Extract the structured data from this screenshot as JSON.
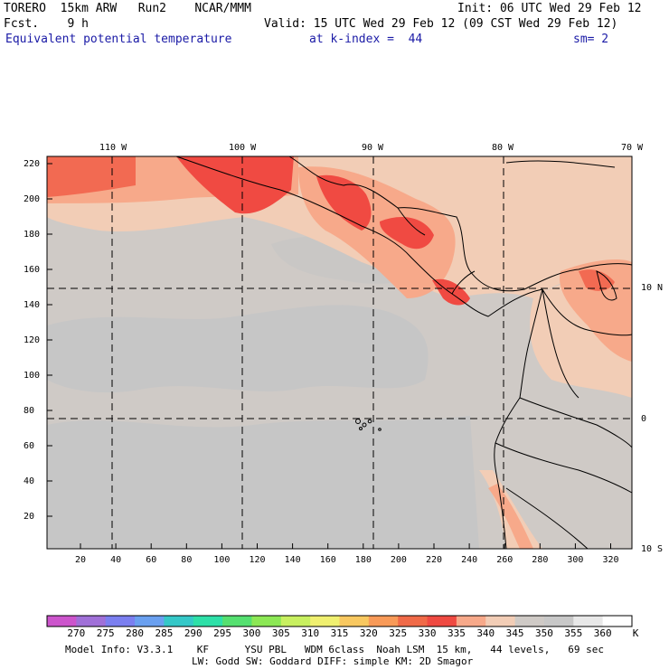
{
  "header": {
    "model": "TORERO  15km ARW   Run2    NCAR/MMM",
    "init": "Init: 06 UTC Wed 29 Feb 12",
    "fcst": "Fcst.    9 h",
    "valid": "Valid: 15 UTC Wed 29 Feb 12 (09 CST Wed 29 Feb 12)",
    "field": "Equivalent potential temperature",
    "level": "at k-index =  44",
    "smooth": "sm= 2"
  },
  "map": {
    "lon_labels": [
      "110 W",
      "100 W",
      "90 W",
      "80 W",
      "70 W"
    ],
    "lat_labels": [
      "10 N",
      "0",
      "10 S"
    ],
    "y_ticks": [
      "220",
      "200",
      "180",
      "160",
      "140",
      "120",
      "100",
      "80",
      "60",
      "40",
      "20"
    ],
    "x_ticks": [
      "20",
      "40",
      "60",
      "80",
      "100",
      "120",
      "140",
      "160",
      "180",
      "200",
      "220",
      "240",
      "260",
      "280",
      "300",
      "320"
    ],
    "field_colors": {
      "background_ocean": "#cfcac6",
      "cool_patch": "#c4c4c4",
      "warm_340": "#f2cdb6",
      "warm_335": "#f7a98a",
      "hot_330": "#f26a52",
      "hot_325": "#ef4a42",
      "land_south": "#c9c9c9"
    }
  },
  "colorbar": {
    "labels": [
      "270",
      "275",
      "280",
      "285",
      "290",
      "295",
      "300",
      "305",
      "310",
      "315",
      "320",
      "325",
      "330",
      "335",
      "340",
      "345",
      "350",
      "355",
      "360"
    ],
    "unit": "K",
    "colors": [
      "#cc55cc",
      "#a070d8",
      "#7b7ff0",
      "#6aa0f0",
      "#35c8c8",
      "#2ee0a8",
      "#55e070",
      "#8ce855",
      "#c8f060",
      "#f0f070",
      "#f8c860",
      "#f89a58",
      "#f06a48",
      "#ef4a42",
      "#f7a98a",
      "#f2cdb6",
      "#cfcac6",
      "#c8c8c8",
      "#e8e8e8",
      "#ffffff"
    ]
  },
  "footer": {
    "line1": "Model Info: V3.3.1    KF      YSU PBL   WDM 6class  Noah LSM  15 km,   44 levels,   69 sec",
    "line2": "LW: Godd SW: Goddard DIFF: simple KM: 2D Smagor"
  }
}
